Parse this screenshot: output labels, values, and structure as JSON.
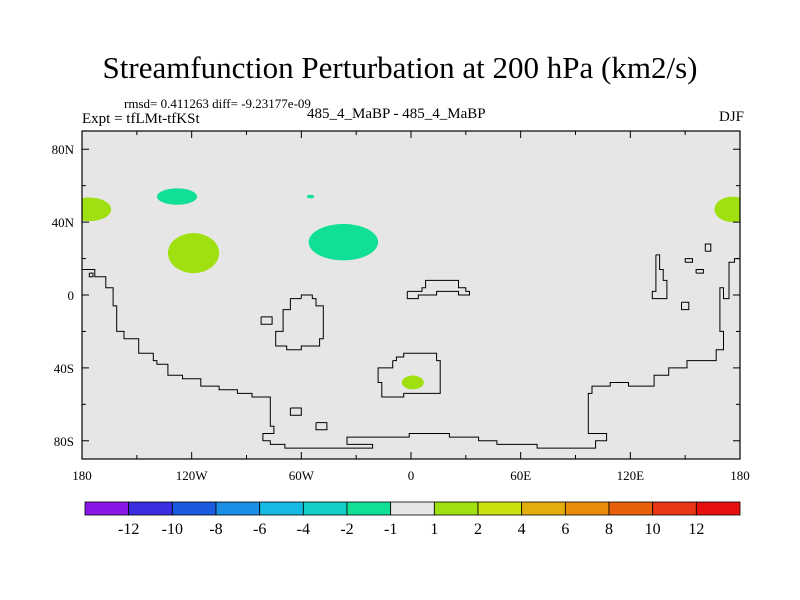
{
  "chart_data": {
    "type": "heatmap",
    "title": "Streamfunction Perturbation at 200 hPa (km2/s)",
    "stats_text": "rmsd= 0.411263 diff= -9.23177e-09",
    "expt_label": "Expt = tfLMt-tfKSt",
    "experiment_label": "485_4_MaBP - 485_4_MaBP",
    "season": "DJF",
    "xlim": [
      -180,
      180
    ],
    "ylim": [
      -90,
      90
    ],
    "x_ticks": [
      {
        "value": -180,
        "label": "180"
      },
      {
        "value": -120,
        "label": "120W"
      },
      {
        "value": -60,
        "label": "60W"
      },
      {
        "value": 0,
        "label": "0"
      },
      {
        "value": 60,
        "label": "60E"
      },
      {
        "value": 120,
        "label": "120E"
      },
      {
        "value": 180,
        "label": "180"
      }
    ],
    "y_ticks": [
      {
        "value": 80,
        "label": "80N"
      },
      {
        "value": 40,
        "label": "40N"
      },
      {
        "value": 0,
        "label": "0"
      },
      {
        "value": -40,
        "label": "40S"
      },
      {
        "value": -80,
        "label": "80S"
      }
    ],
    "colorbar": {
      "labels": [
        "-12",
        "-10",
        "-8",
        "-6",
        "-4",
        "-2",
        "-1",
        "1",
        "2",
        "4",
        "6",
        "8",
        "10",
        "12"
      ],
      "colors": [
        "#8a17e8",
        "#3a2ee0",
        "#1b5be0",
        "#1a8fe6",
        "#16b9e3",
        "#12cfc6",
        "#10e095",
        "#e6e6e6",
        "#a0e010",
        "#cce010",
        "#e3ad0c",
        "#e88c0a",
        "#e8600b",
        "#e83616",
        "#e8100f"
      ]
    },
    "features": [
      {
        "kind": "ellipse",
        "lon": -176,
        "lat": 47,
        "rlon": 12,
        "rlat": 6.5,
        "color": "#a0e010"
      },
      {
        "kind": "ellipse",
        "lon": 176,
        "lat": 47,
        "rlon": 10,
        "rlat": 7,
        "color": "#a0e010"
      },
      {
        "kind": "ellipse",
        "lon": -128,
        "lat": 54,
        "rlon": 11,
        "rlat": 4.5,
        "color": "#10e095"
      },
      {
        "kind": "ellipse",
        "lon": -55,
        "lat": 54,
        "rlon": 2,
        "rlat": 1,
        "color": "#10e095"
      },
      {
        "kind": "ellipse",
        "lon": -119,
        "lat": 23,
        "rlon": 14,
        "rlat": 11,
        "color": "#a0e010"
      },
      {
        "kind": "ellipse",
        "lon": -37,
        "lat": 29,
        "rlon": 19,
        "rlat": 10,
        "color": "#10e095"
      },
      {
        "kind": "ellipse",
        "lon": 1,
        "lat": -48,
        "rlon": 6,
        "rlat": 3.8,
        "color": "#a0e010"
      }
    ],
    "outlines": [
      [
        [
          -180,
          14
        ],
        [
          -173,
          14
        ],
        [
          -173,
          10
        ],
        [
          -167,
          10
        ],
        [
          -167,
          4
        ],
        [
          -163,
          4
        ],
        [
          -163,
          -6
        ],
        [
          -161,
          -6
        ],
        [
          -161,
          -20
        ],
        [
          -157,
          -20
        ],
        [
          -157,
          -24
        ],
        [
          -149,
          -24
        ],
        [
          -149,
          -32
        ],
        [
          -141,
          -32
        ],
        [
          -141,
          -36
        ],
        [
          -139,
          -36
        ],
        [
          -139,
          -38
        ],
        [
          -133,
          -38
        ],
        [
          -133,
          -44
        ],
        [
          -125,
          -44
        ],
        [
          -125,
          -46
        ],
        [
          -115,
          -46
        ],
        [
          -115,
          -50
        ],
        [
          -105,
          -50
        ],
        [
          -105,
          -52
        ],
        [
          -95,
          -52
        ],
        [
          -95,
          -54
        ],
        [
          -87,
          -54
        ],
        [
          -87,
          -56
        ],
        [
          -77,
          -56
        ],
        [
          -77,
          -72
        ],
        [
          -75,
          -72
        ],
        [
          -75,
          -76
        ],
        [
          -81,
          -76
        ],
        [
          -81,
          -80
        ],
        [
          -77,
          -80
        ],
        [
          -77,
          -82
        ],
        [
          -69,
          -82
        ],
        [
          -69,
          -84
        ],
        [
          -21,
          -84
        ],
        [
          -21,
          -82
        ],
        [
          -35,
          -82
        ],
        [
          -35,
          -78
        ],
        [
          -1,
          -78
        ],
        [
          -1,
          -76
        ],
        [
          21,
          -76
        ],
        [
          21,
          -78
        ],
        [
          37,
          -78
        ],
        [
          37,
          -80
        ],
        [
          47,
          -80
        ],
        [
          47,
          -82
        ],
        [
          69,
          -82
        ],
        [
          69,
          -84
        ],
        [
          101,
          -84
        ],
        [
          101,
          -80
        ],
        [
          107,
          -80
        ],
        [
          107,
          -76
        ],
        [
          97,
          -76
        ],
        [
          97,
          -54
        ],
        [
          99,
          -54
        ],
        [
          99,
          -50
        ],
        [
          109,
          -50
        ],
        [
          109,
          -48
        ],
        [
          119,
          -48
        ],
        [
          119,
          -50
        ],
        [
          133,
          -50
        ],
        [
          133,
          -44
        ],
        [
          141,
          -44
        ],
        [
          141,
          -40
        ],
        [
          151,
          -40
        ],
        [
          151,
          -36
        ],
        [
          167,
          -36
        ],
        [
          167,
          -30
        ],
        [
          171,
          -30
        ],
        [
          171,
          -22
        ],
        [
          171,
          -20
        ],
        [
          169,
          -20
        ],
        [
          169,
          -8
        ],
        [
          169,
          4
        ],
        [
          171,
          4
        ],
        [
          171,
          -2
        ],
        [
          174,
          -2
        ],
        [
          174,
          18
        ],
        [
          177,
          18
        ],
        [
          177,
          20
        ],
        [
          180,
          20
        ]
      ],
      [
        [
          -176,
          12
        ],
        [
          -174,
          12
        ],
        [
          -174,
          10
        ],
        [
          -176,
          10
        ],
        [
          -176,
          12
        ]
      ],
      [
        [
          -60,
          -2
        ],
        [
          -66,
          -2
        ],
        [
          -66,
          -8
        ],
        [
          -70,
          -8
        ],
        [
          -70,
          -20
        ],
        [
          -74,
          -20
        ],
        [
          -74,
          -28
        ],
        [
          -68,
          -28
        ],
        [
          -68,
          -30
        ],
        [
          -60,
          -30
        ],
        [
          -60,
          -28
        ],
        [
          -50,
          -28
        ],
        [
          -50,
          -24
        ],
        [
          -48,
          -24
        ],
        [
          -48,
          -6
        ],
        [
          -52,
          -6
        ],
        [
          -52,
          -2
        ],
        [
          -54,
          -2
        ],
        [
          -54,
          0
        ],
        [
          -60,
          0
        ],
        [
          -60,
          -2
        ]
      ],
      [
        [
          -82,
          -12
        ],
        [
          -76,
          -12
        ],
        [
          -76,
          -16
        ],
        [
          -82,
          -16
        ],
        [
          -82,
          -12
        ]
      ],
      [
        [
          -66,
          -62
        ],
        [
          -60,
          -62
        ],
        [
          -60,
          -66
        ],
        [
          -66,
          -66
        ],
        [
          -66,
          -62
        ]
      ],
      [
        [
          -52,
          -70
        ],
        [
          -46,
          -70
        ],
        [
          -46,
          -74
        ],
        [
          -52,
          -74
        ],
        [
          -52,
          -70
        ]
      ],
      [
        [
          -2,
          2
        ],
        [
          6,
          2
        ],
        [
          6,
          4
        ],
        [
          8,
          4
        ],
        [
          8,
          8
        ],
        [
          26,
          8
        ],
        [
          26,
          4
        ],
        [
          30,
          4
        ],
        [
          30,
          2
        ],
        [
          32,
          2
        ],
        [
          32,
          0
        ],
        [
          26,
          0
        ],
        [
          26,
          2
        ],
        [
          14,
          2
        ],
        [
          14,
          0
        ],
        [
          4,
          0
        ],
        [
          4,
          -2
        ],
        [
          -2,
          -2
        ],
        [
          -2,
          2
        ]
      ],
      [
        [
          -10,
          -36
        ],
        [
          -8,
          -36
        ],
        [
          -8,
          -34
        ],
        [
          -4,
          -34
        ],
        [
          -4,
          -32
        ],
        [
          14,
          -32
        ],
        [
          14,
          -36
        ],
        [
          16,
          -36
        ],
        [
          16,
          -54
        ],
        [
          -4,
          -54
        ],
        [
          -4,
          -56
        ],
        [
          -16,
          -56
        ],
        [
          -16,
          -48
        ],
        [
          -18,
          -48
        ],
        [
          -18,
          -40
        ],
        [
          -10,
          -40
        ],
        [
          -10,
          -36
        ]
      ],
      [
        [
          134,
          22
        ],
        [
          136,
          22
        ],
        [
          136,
          14
        ],
        [
          138,
          14
        ],
        [
          138,
          8
        ],
        [
          140,
          8
        ],
        [
          140,
          -2
        ],
        [
          132,
          -2
        ],
        [
          132,
          2
        ],
        [
          134,
          2
        ],
        [
          134,
          22
        ]
      ],
      [
        [
          148,
          -4
        ],
        [
          152,
          -4
        ],
        [
          152,
          -8
        ],
        [
          148,
          -8
        ],
        [
          148,
          -4
        ]
      ],
      [
        [
          150,
          18
        ],
        [
          154,
          18
        ],
        [
          154,
          20
        ],
        [
          150,
          20
        ],
        [
          150,
          18
        ]
      ],
      [
        [
          156,
          12
        ],
        [
          160,
          12
        ],
        [
          160,
          14
        ],
        [
          156,
          14
        ],
        [
          156,
          12
        ]
      ],
      [
        [
          161,
          24
        ],
        [
          164,
          24
        ],
        [
          164,
          28
        ],
        [
          161,
          28
        ],
        [
          161,
          24
        ]
      ]
    ]
  }
}
